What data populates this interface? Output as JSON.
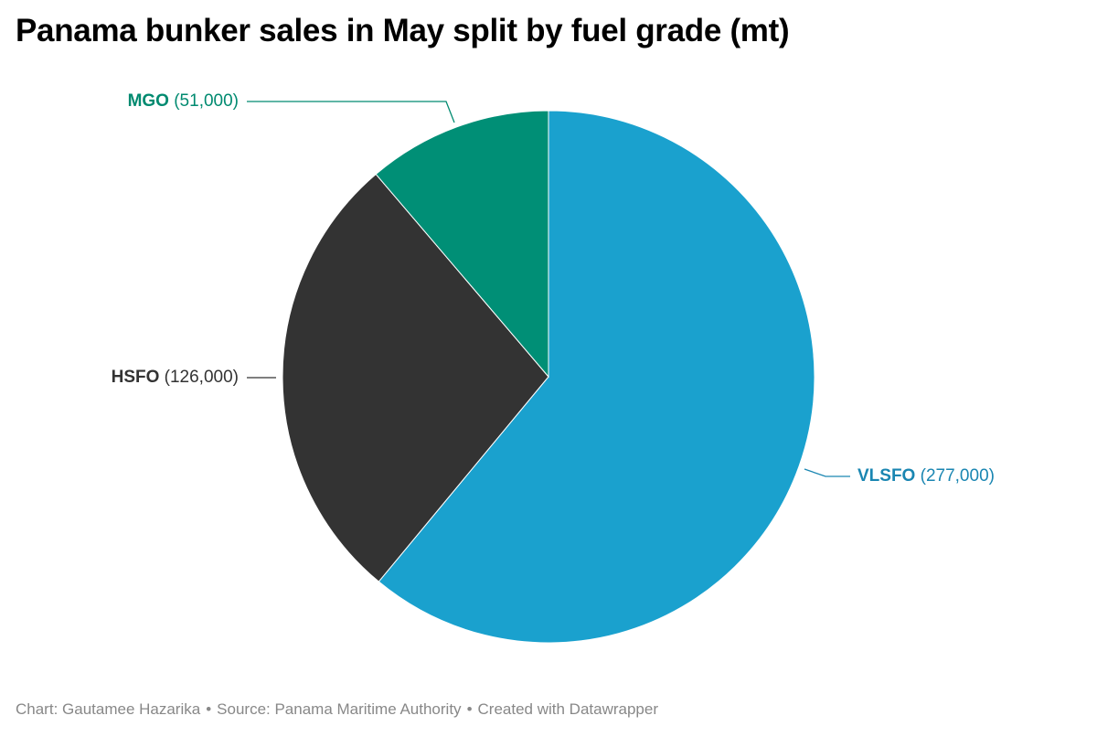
{
  "title": "Panama bunker sales in May split by fuel grade (mt)",
  "chart_data": {
    "type": "pie",
    "title": "Panama bunker sales in May split by fuel grade (mt)",
    "unit": "mt",
    "slices": [
      {
        "label": "VLSFO",
        "value": 277000,
        "value_label": "(277,000)",
        "color": "#1aa1ce",
        "label_color": "#1a86b2"
      },
      {
        "label": "HSFO",
        "value": 126000,
        "value_label": "(126,000)",
        "color": "#333333",
        "label_color": "#333333"
      },
      {
        "label": "MGO",
        "value": 51000,
        "value_label": "(51,000)",
        "color": "#008f76",
        "label_color": "#008a70"
      }
    ]
  },
  "footer": {
    "chart_credit": "Chart: Gautamee Hazarika",
    "separator": "•",
    "source": "Source: Panama Maritime Authority",
    "created_with": "Created with Datawrapper"
  }
}
